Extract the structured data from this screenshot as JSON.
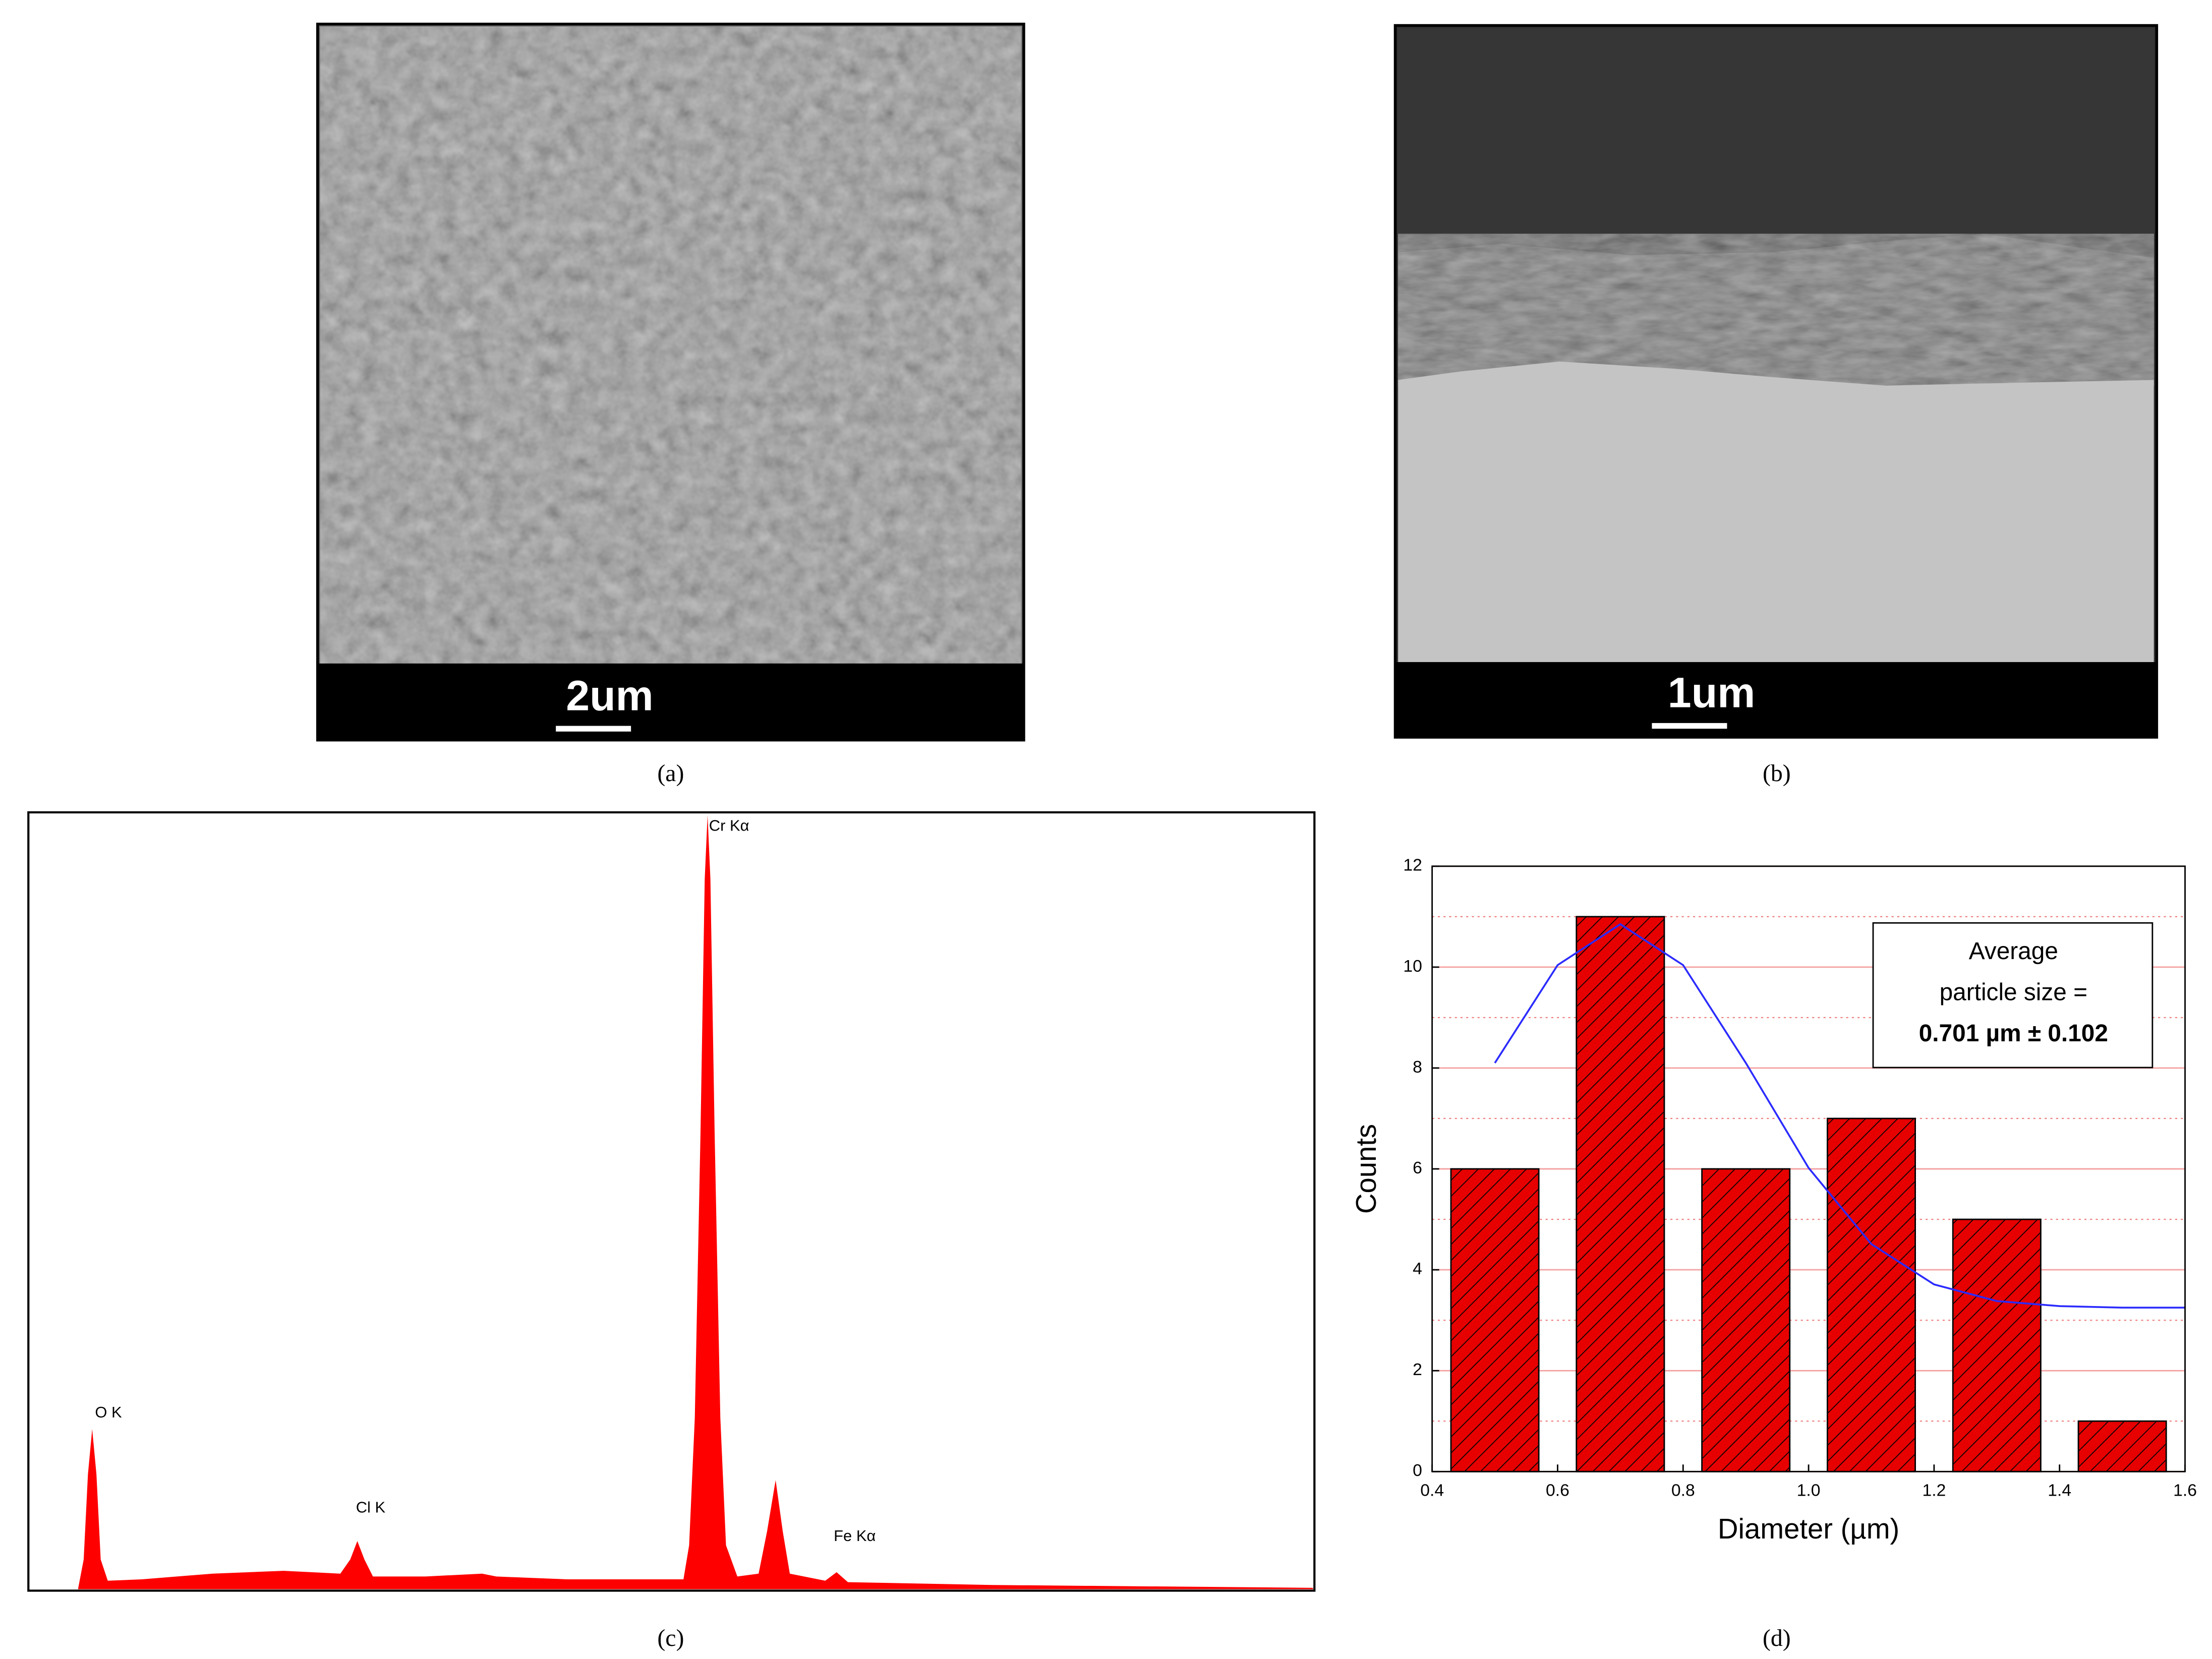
{
  "panels": [
    {
      "label": "(a)",
      "scale_bar": "2um"
    },
    {
      "label": "(b)",
      "scale_bar": "1um"
    },
    {
      "label": "(c)"
    },
    {
      "label": "(d)"
    }
  ],
  "chart_data": [
    {
      "type": "spectrum",
      "peaks": [
        {
          "label": "O K"
        },
        {
          "label": "Cl K"
        },
        {
          "label": "Cr Kα"
        },
        {
          "label": "Fe Kα"
        }
      ],
      "color": "#ff0000"
    },
    {
      "type": "histogram",
      "xlabel": "Diameter (µm)",
      "ylabel": "Counts",
      "bins": [
        0.4,
        0.6,
        0.8,
        1.0,
        1.2,
        1.4,
        1.6
      ],
      "counts": [
        6,
        11,
        6,
        7,
        5,
        1
      ],
      "color": "#e60000",
      "fit": {
        "color": "#2b2bff",
        "x": [
          0.5,
          0.6,
          0.7,
          0.8,
          0.9,
          1.0,
          1.1,
          1.2,
          1.3,
          1.4,
          1.5,
          1.6
        ],
        "y": [
          8.1,
          10.04,
          10.85,
          10.04,
          8.1,
          6.02,
          4.51,
          3.71,
          3.38,
          3.28,
          3.25,
          3.25
        ]
      },
      "annotation": [
        "Average",
        "particle size =",
        "0.701 µm ± 0.102"
      ],
      "xlim": [
        0.4,
        1.6
      ],
      "xticks": [
        0.4,
        0.6,
        0.8,
        {
          "value": 1.0,
          "label": "1.0"
        },
        1.2,
        1.4,
        1.6
      ],
      "ylim": [
        0,
        12
      ],
      "yticks": [
        0,
        2,
        4,
        6,
        8,
        10,
        12
      ],
      "minor_yticks": [
        1,
        3,
        5,
        7,
        9,
        11
      ],
      "grid": true
    }
  ]
}
